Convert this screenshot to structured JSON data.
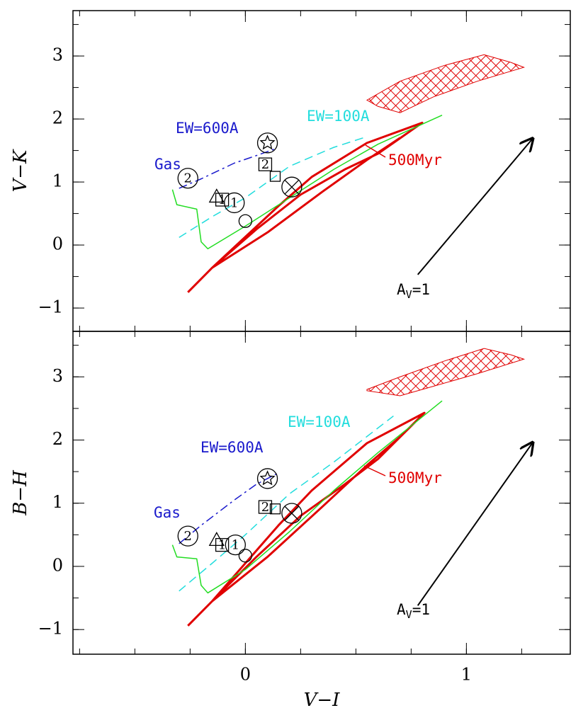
{
  "chart_data": [
    {
      "type": "line",
      "ylabel": "V−K",
      "xlim": [
        -0.78,
        1.47
      ],
      "ylim": [
        -1.37,
        3.72
      ],
      "xticks": [
        0,
        1
      ],
      "xticklabels": false,
      "yticks": [
        {
          "value": -1,
          "label": "−1"
        },
        0,
        1,
        2,
        3
      ],
      "xminor_step": 0.25,
      "yminor_step": 0.5,
      "series": [
        {
          "color": "#e00000",
          "width": 3,
          "dash": "solid",
          "x": [
            -0.26,
            -0.15,
            0.05,
            0.25,
            0.45,
            0.6,
            0.8,
            0.55,
            0.3,
            0.15,
            -0.15,
            0.1,
            0.35,
            0.55,
            0.7
          ],
          "values": [
            -0.75,
            -0.36,
            0.25,
            0.8,
            1.2,
            1.45,
            1.94,
            1.62,
            1.08,
            0.62,
            -0.36,
            0.2,
            0.85,
            1.35,
            1.7
          ]
        },
        {
          "color": "#22dd22",
          "width": 1.5,
          "dash": "solid",
          "x": [
            -0.33,
            -0.31,
            -0.22,
            -0.2,
            -0.17,
            0.0,
            0.2,
            0.4,
            0.6,
            0.89
          ],
          "values": [
            0.88,
            0.64,
            0.57,
            0.05,
            -0.06,
            0.3,
            0.75,
            1.2,
            1.6,
            2.06
          ]
        },
        {
          "color": "#22dddd",
          "width": 1.5,
          "dash": "dashed",
          "x": [
            -0.3,
            -0.15,
            0.0,
            0.2,
            0.4,
            0.55
          ],
          "values": [
            0.12,
            0.45,
            0.75,
            1.25,
            1.55,
            1.72
          ]
        },
        {
          "color": "#1a1acc",
          "width": 1.5,
          "dash": "dashdot",
          "x": [
            -0.3,
            -0.2,
            -0.05,
            0.05,
            0.13
          ],
          "values": [
            0.9,
            1.05,
            1.3,
            1.42,
            1.52
          ]
        }
      ],
      "points": [
        {
          "symbol": "circle",
          "x": -0.26,
          "y": 1.06,
          "label": "2"
        },
        {
          "symbol": "star-circle",
          "x": 0.1,
          "y": 1.62
        },
        {
          "symbol": "square",
          "x": 0.09,
          "y": 1.28,
          "label": "2"
        },
        {
          "symbol": "small-square",
          "x": 0.135,
          "y": 1.09
        },
        {
          "symbol": "cross-circle",
          "x": 0.21,
          "y": 0.92
        },
        {
          "symbol": "triangle",
          "x": -0.13,
          "y": 0.76
        },
        {
          "symbol": "square",
          "x": -0.105,
          "y": 0.72,
          "label": "1"
        },
        {
          "symbol": "circle",
          "x": -0.05,
          "y": 0.67,
          "label": "1"
        },
        {
          "symbol": "small-circle",
          "x": 0.0,
          "y": 0.38
        }
      ],
      "region": {
        "color": "#e00000",
        "x": [
          0.55,
          0.7,
          0.9,
          1.08,
          1.2,
          1.26,
          1.05,
          0.85,
          0.7,
          0.6
        ],
        "y": [
          2.3,
          2.6,
          2.85,
          3.02,
          2.9,
          2.82,
          2.6,
          2.35,
          2.1,
          2.2
        ]
      },
      "arrow": {
        "x": [
          0.78,
          1.3
        ],
        "y": [
          -0.47,
          1.69
        ]
      },
      "annotations": [
        {
          "text": "EW=600A",
          "color": "#1a1acc"
        },
        {
          "text": "EW=100A",
          "color": "#22dddd"
        },
        {
          "text": "Gas",
          "color": "#1a1acc"
        },
        {
          "text": "500Myr",
          "color": "#e00000"
        },
        {
          "text": "A",
          "sub": "V",
          "after": "=1",
          "color": "#000000"
        }
      ]
    },
    {
      "type": "line",
      "ylabel": "B−H",
      "xlabel": "V−I",
      "xlim": [
        -0.78,
        1.47
      ],
      "ylim": [
        -1.39,
        3.72
      ],
      "xticks": [
        0,
        1
      ],
      "xticklabels": true,
      "yticks": [
        {
          "value": -1,
          "label": "−1"
        },
        0,
        1,
        2,
        3
      ],
      "xminor_step": 0.25,
      "yminor_step": 0.5,
      "series": [
        {
          "color": "#e00000",
          "width": 3,
          "dash": "solid",
          "x": [
            -0.26,
            -0.15,
            0.05,
            0.25,
            0.45,
            0.6,
            0.81,
            0.55,
            0.3,
            0.15,
            -0.15,
            0.1,
            0.35,
            0.55,
            0.7
          ],
          "values": [
            -0.94,
            -0.55,
            0.15,
            0.8,
            1.3,
            1.7,
            2.43,
            1.95,
            1.2,
            0.65,
            -0.55,
            0.15,
            0.95,
            1.6,
            2.05
          ]
        },
        {
          "color": "#22dddd",
          "width": 1.5,
          "dash": "dashed",
          "x": [
            -0.3,
            -0.15,
            0.0,
            0.2,
            0.4,
            0.67
          ],
          "values": [
            -0.39,
            0.05,
            0.5,
            1.15,
            1.65,
            2.38
          ]
        },
        {
          "color": "#22dd22",
          "width": 1.5,
          "dash": "solid",
          "x": [
            -0.33,
            -0.31,
            -0.22,
            -0.2,
            -0.17,
            0.0,
            0.2,
            0.4,
            0.6,
            0.89
          ],
          "values": [
            0.34,
            0.15,
            0.12,
            -0.3,
            -0.42,
            -0.05,
            0.55,
            1.2,
            1.8,
            2.62
          ]
        },
        {
          "color": "#1a1acc",
          "width": 1.5,
          "dash": "dashdot",
          "x": [
            -0.3,
            -0.2,
            -0.05,
            0.05,
            0.15
          ],
          "values": [
            0.36,
            0.65,
            1.05,
            1.3,
            1.48
          ]
        }
      ],
      "points": [
        {
          "symbol": "circle",
          "x": -0.26,
          "y": 0.48,
          "label": "2"
        },
        {
          "symbol": "star-circle",
          "x": 0.1,
          "y": 1.39
        },
        {
          "symbol": "square",
          "x": 0.09,
          "y": 0.94,
          "label": "2"
        },
        {
          "symbol": "small-square",
          "x": 0.135,
          "y": 0.91
        },
        {
          "symbol": "cross-circle",
          "x": 0.21,
          "y": 0.84
        },
        {
          "symbol": "triangle",
          "x": -0.13,
          "y": 0.41
        },
        {
          "symbol": "square",
          "x": -0.105,
          "y": 0.34,
          "label": "1"
        },
        {
          "symbol": "circle",
          "x": -0.045,
          "y": 0.34,
          "label": "1"
        },
        {
          "symbol": "small-circle",
          "x": 0.0,
          "y": 0.17
        }
      ],
      "region": {
        "color": "#e00000",
        "x": [
          0.55,
          0.7,
          0.9,
          1.08,
          1.2,
          1.26,
          1.05,
          0.85,
          0.7,
          0.55
        ],
        "y": [
          2.8,
          3.0,
          3.25,
          3.45,
          3.35,
          3.28,
          3.05,
          2.85,
          2.7,
          2.78
        ]
      },
      "arrow": {
        "x": [
          0.78,
          1.3
        ],
        "y": [
          -0.62,
          1.96
        ]
      },
      "annotations": [
        {
          "text": "EW=600A",
          "color": "#1a1acc"
        },
        {
          "text": "EW=100A",
          "color": "#22dddd"
        },
        {
          "text": "Gas",
          "color": "#1a1acc"
        },
        {
          "text": "500Myr",
          "color": "#e00000"
        },
        {
          "text": "A",
          "sub": "V",
          "after": "=1",
          "color": "#000000"
        }
      ]
    }
  ]
}
